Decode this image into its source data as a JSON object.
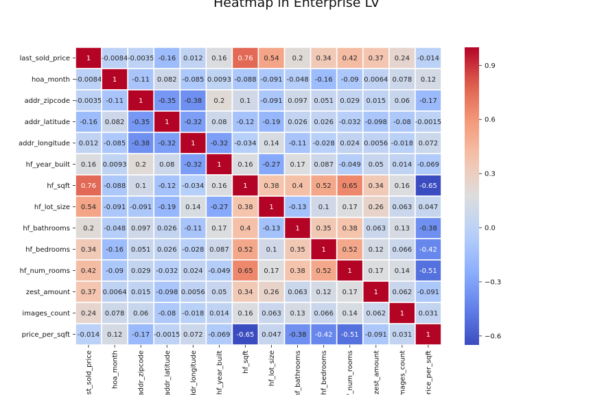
{
  "chart_data": {
    "type": "heatmap",
    "title": "Heatmap in Enterprise LV",
    "colormap": "coolwarm",
    "vmin": -0.65,
    "vmax": 1.0,
    "rows": [
      "last_sold_price",
      "hoa_month",
      "addr_zipcode",
      "addr_latitude",
      "addr_longitude",
      "hf_year_built",
      "hf_sqft",
      "hf_lot_size",
      "hf_bathrooms",
      "hf_bedrooms",
      "hf_num_rooms",
      "zest_amount",
      "images_count",
      "price_per_sqft"
    ],
    "col_tick_labels": [
      "last_sold_price",
      "hoa_month",
      "addr_zipcode",
      "addr_latitude",
      "addr_longitude",
      "hf_year_built",
      "hf_sqft",
      "hf_lot_size",
      "hf_bathrooms",
      "hf_bedrooms",
      "hf_num_rooms",
      "zest_amount",
      "images_count",
      "price_per_sqft"
    ],
    "values": [
      [
        "1",
        "-0.0084",
        "-0.0035",
        "-0.16",
        "0.012",
        "0.16",
        "0.76",
        "0.54",
        "0.2",
        "0.34",
        "0.42",
        "0.37",
        "0.24",
        "-0.014"
      ],
      [
        "-0.0084",
        "1",
        "-0.11",
        "0.082",
        "-0.085",
        "0.0093",
        "-0.088",
        "-0.091",
        "-0.048",
        "-0.16",
        "-0.09",
        "0.0064",
        "0.078",
        "0.12"
      ],
      [
        "-0.0035",
        "-0.11",
        "1",
        "-0.35",
        "-0.38",
        "0.2",
        "0.1",
        "-0.091",
        "0.097",
        "0.051",
        "0.029",
        "0.015",
        "0.06",
        "-0.17"
      ],
      [
        "-0.16",
        "0.082",
        "-0.35",
        "1",
        "-0.32",
        "0.08",
        "-0.12",
        "-0.19",
        "0.026",
        "0.026",
        "-0.032",
        "-0.098",
        "-0.08",
        "-0.0015"
      ],
      [
        "0.012",
        "-0.085",
        "-0.38",
        "-0.32",
        "1",
        "-0.32",
        "-0.034",
        "0.14",
        "-0.11",
        "-0.028",
        "0.024",
        "0.0056",
        "-0.018",
        "0.072"
      ],
      [
        "0.16",
        "0.0093",
        "0.2",
        "0.08",
        "-0.32",
        "1",
        "0.16",
        "-0.27",
        "0.17",
        "0.087",
        "-0.049",
        "0.05",
        "0.014",
        "-0.069"
      ],
      [
        "0.76",
        "-0.088",
        "0.1",
        "-0.12",
        "-0.034",
        "0.16",
        "1",
        "0.38",
        "0.4",
        "0.52",
        "0.65",
        "0.34",
        "0.16",
        "-0.65"
      ],
      [
        "0.54",
        "-0.091",
        "-0.091",
        "-0.19",
        "0.14",
        "-0.27",
        "0.38",
        "1",
        "-0.13",
        "0.1",
        "0.17",
        "0.26",
        "0.063",
        "0.047"
      ],
      [
        "0.2",
        "-0.048",
        "0.097",
        "0.026",
        "-0.11",
        "0.17",
        "0.4",
        "-0.13",
        "1",
        "0.35",
        "0.38",
        "0.063",
        "0.13",
        "-0.38"
      ],
      [
        "0.34",
        "-0.16",
        "0.051",
        "0.026",
        "-0.028",
        "0.087",
        "0.52",
        "0.1",
        "0.35",
        "1",
        "0.52",
        "0.12",
        "0.066",
        "-0.42"
      ],
      [
        "0.42",
        "-0.09",
        "0.029",
        "-0.032",
        "0.024",
        "-0.049",
        "0.65",
        "0.17",
        "0.38",
        "0.52",
        "1",
        "0.17",
        "0.14",
        "-0.51"
      ],
      [
        "0.37",
        "0.0064",
        "0.015",
        "-0.098",
        "0.0056",
        "0.05",
        "0.34",
        "0.26",
        "0.063",
        "0.12",
        "0.17",
        "1",
        "0.062",
        "-0.091"
      ],
      [
        "0.24",
        "0.078",
        "0.06",
        "-0.08",
        "-0.018",
        "0.014",
        "0.16",
        "0.063",
        "0.13",
        "0.066",
        "0.14",
        "0.062",
        "1",
        "0.031"
      ],
      [
        "-0.014",
        "0.12",
        "-0.17",
        "-0.0015",
        "0.072",
        "-0.069",
        "-0.65",
        "0.047",
        "-0.38",
        "-0.42",
        "-0.51",
        "-0.091",
        "0.031",
        "1"
      ]
    ],
    "colorbar_ticks": [
      0.9,
      0.6,
      0.3,
      0.0,
      -0.3,
      -0.6
    ],
    "colorbar_tick_labels": [
      "0.9",
      "0.6",
      "0.3",
      "0.0",
      "−0.3",
      "−0.6"
    ]
  }
}
